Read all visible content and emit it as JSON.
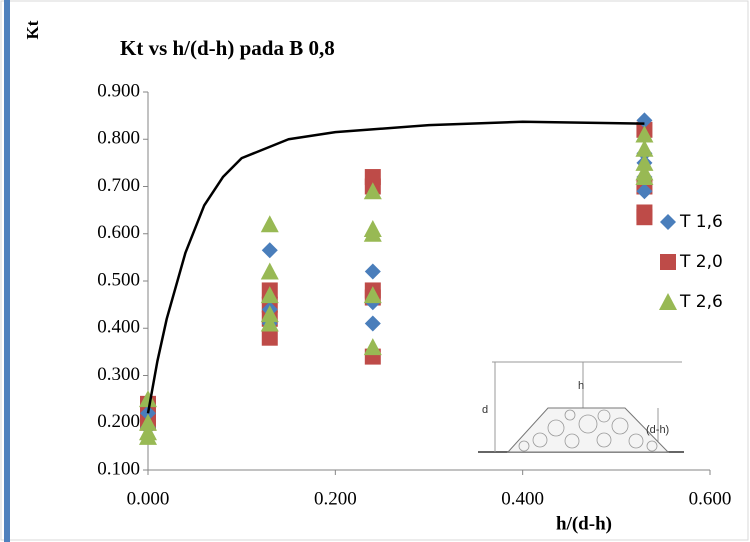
{
  "chart_data": {
    "type": "scatter",
    "title": "Kt vs h/(d-h) pada B 0,8",
    "y_label": "Kt",
    "x_label": "h/(d-h)",
    "xlim": [
      0,
      0.6
    ],
    "ylim": [
      0.1,
      0.9
    ],
    "xticks": [
      {
        "value": 0,
        "label": "0.000"
      },
      {
        "value": 0.2,
        "label": "0.200"
      },
      {
        "value": 0.4,
        "label": "0.400"
      },
      {
        "value": 0.6,
        "label": "0.600"
      }
    ],
    "yticks": [
      {
        "value": 0.1,
        "label": "0.100"
      },
      {
        "value": 0.2,
        "label": "0.200"
      },
      {
        "value": 0.3,
        "label": "0.300"
      },
      {
        "value": 0.4,
        "label": "0.400"
      },
      {
        "value": 0.5,
        "label": "0.500"
      },
      {
        "value": 0.6,
        "label": "0.600"
      },
      {
        "value": 0.7,
        "label": "0.700"
      },
      {
        "value": 0.8,
        "label": "0.800"
      },
      {
        "value": 0.9,
        "label": "0.900"
      }
    ],
    "grid": false,
    "legend": "right",
    "series": [
      {
        "name": "T 1,6",
        "color": "#4a7ebb",
        "marker": "diamond",
        "x": [
          0,
          0,
          0.13,
          0.13,
          0.13,
          0.24,
          0.24,
          0.24,
          0.53,
          0.53,
          0.53,
          0.53,
          0.53
        ],
        "values": [
          0.22,
          0.19,
          0.565,
          0.44,
          0.41,
          0.52,
          0.455,
          0.41,
          0.84,
          0.77,
          0.75,
          0.72,
          0.69
        ]
      },
      {
        "name": "T 2,0",
        "color": "#be4b48",
        "marker": "square",
        "x": [
          0,
          0,
          0,
          0.13,
          0.13,
          0.13,
          0.13,
          0.24,
          0.24,
          0.24,
          0.24,
          0.24,
          0.53,
          0.53,
          0.53,
          0.53
        ],
        "values": [
          0.24,
          0.21,
          0.2,
          0.48,
          0.45,
          0.42,
          0.38,
          0.72,
          0.7,
          0.48,
          0.465,
          0.34,
          0.82,
          0.7,
          0.645,
          0.635
        ]
      },
      {
        "name": "T 2,6",
        "color": "#98b954",
        "marker": "triangle",
        "x": [
          0,
          0,
          0,
          0,
          0.13,
          0.13,
          0.13,
          0.13,
          0.13,
          0.24,
          0.24,
          0.24,
          0.24,
          0.24,
          0.53,
          0.53,
          0.53,
          0.53,
          0.53
        ],
        "values": [
          0.25,
          0.2,
          0.18,
          0.17,
          0.62,
          0.52,
          0.47,
          0.43,
          0.41,
          0.69,
          0.61,
          0.6,
          0.47,
          0.36,
          0.81,
          0.78,
          0.75,
          0.73,
          0.72
        ]
      }
    ],
    "trendline": {
      "color": "#000000",
      "x": [
        0,
        0.01,
        0.02,
        0.04,
        0.06,
        0.08,
        0.1,
        0.15,
        0.2,
        0.3,
        0.4,
        0.53
      ],
      "values": [
        0.22,
        0.33,
        0.42,
        0.56,
        0.66,
        0.72,
        0.76,
        0.8,
        0.815,
        0.83,
        0.837,
        0.833
      ]
    },
    "inset": {
      "labels": [
        "h",
        "d",
        "(d-h)"
      ]
    }
  }
}
